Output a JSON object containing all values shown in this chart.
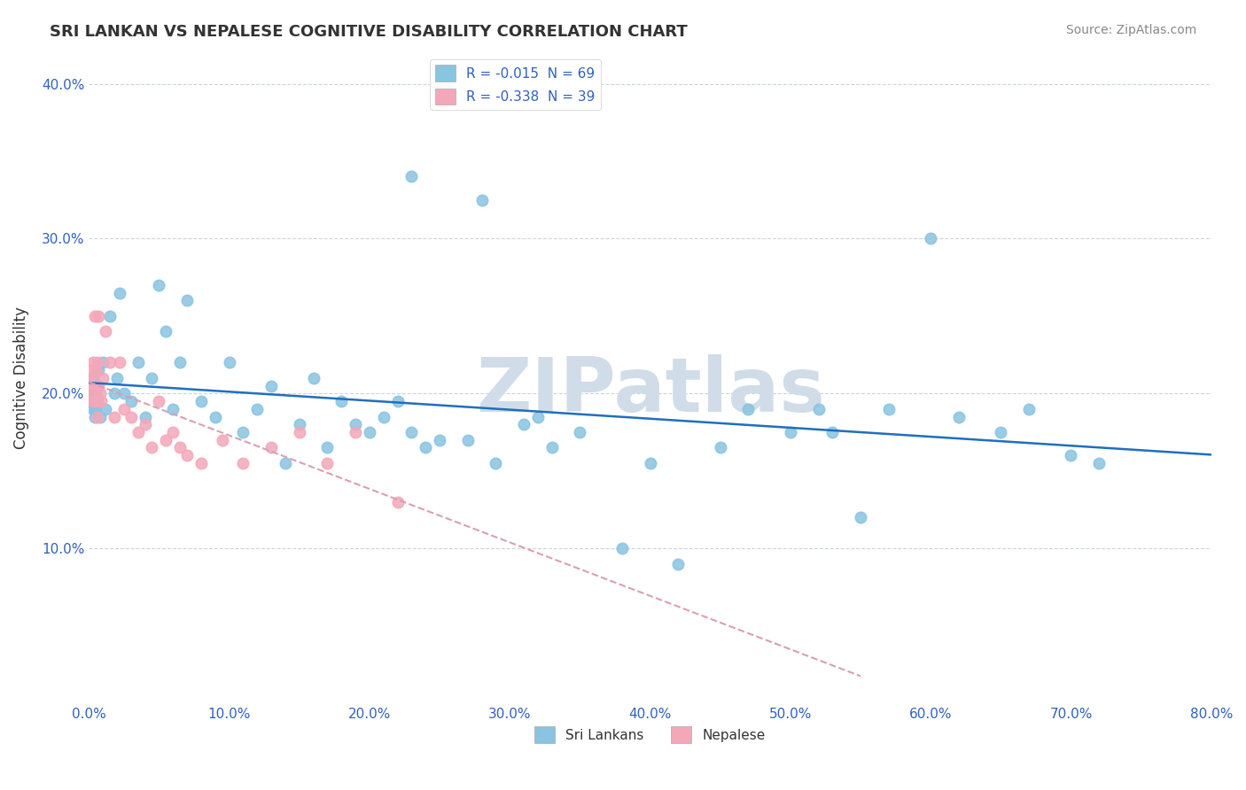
{
  "title": "SRI LANKAN VS NEPALESE COGNITIVE DISABILITY CORRELATION CHART",
  "source": "Source: ZipAtlas.com",
  "xlabel_ticks": [
    "0.0%",
    "10.0%",
    "20.0%",
    "30.0%",
    "40.0%",
    "50.0%",
    "60.0%",
    "70.0%",
    "80.0%"
  ],
  "ylabel_ticks": [
    "10.0%",
    "20.0%",
    "30.0%",
    "40.0%"
  ],
  "xlabel_vals": [
    0.0,
    0.1,
    0.2,
    0.3,
    0.4,
    0.5,
    0.6,
    0.7,
    0.8
  ],
  "ylabel_vals": [
    0.1,
    0.2,
    0.3,
    0.4
  ],
  "xlim": [
    0.0,
    0.8
  ],
  "ylim": [
    0.0,
    0.42
  ],
  "legend_r1": "R = -0.015  N = 69",
  "legend_r2": "R = -0.338  N = 39",
  "legend_label1": "Sri Lankans",
  "legend_label2": "Nepalese",
  "color_sri": "#89c4e1",
  "color_nep": "#f4a7b9",
  "trendline_sri_color": "#1f6fbf",
  "trendline_nep_color": "#d9a0b0",
  "watermark": "ZIPatlas",
  "watermark_color": "#d0dce8",
  "background_color": "#ffffff",
  "title_fontsize": 13,
  "sri_x": [
    0.001,
    0.002,
    0.003,
    0.003,
    0.004,
    0.004,
    0.005,
    0.005,
    0.006,
    0.007,
    0.008,
    0.01,
    0.012,
    0.015,
    0.018,
    0.02,
    0.022,
    0.025,
    0.03,
    0.035,
    0.04,
    0.045,
    0.05,
    0.055,
    0.06,
    0.065,
    0.07,
    0.08,
    0.09,
    0.1,
    0.11,
    0.12,
    0.13,
    0.14,
    0.15,
    0.16,
    0.17,
    0.18,
    0.19,
    0.2,
    0.21,
    0.22,
    0.23,
    0.24,
    0.25,
    0.27,
    0.29,
    0.31,
    0.33,
    0.35,
    0.38,
    0.4,
    0.42,
    0.45,
    0.47,
    0.5,
    0.53,
    0.55,
    0.57,
    0.6,
    0.62,
    0.65,
    0.67,
    0.7,
    0.72,
    0.23,
    0.28,
    0.32,
    0.52
  ],
  "sri_y": [
    0.195,
    0.2,
    0.19,
    0.21,
    0.205,
    0.185,
    0.19,
    0.2,
    0.195,
    0.215,
    0.185,
    0.22,
    0.19,
    0.25,
    0.2,
    0.21,
    0.265,
    0.2,
    0.195,
    0.22,
    0.185,
    0.21,
    0.27,
    0.24,
    0.19,
    0.22,
    0.26,
    0.195,
    0.185,
    0.22,
    0.175,
    0.19,
    0.205,
    0.155,
    0.18,
    0.21,
    0.165,
    0.195,
    0.18,
    0.175,
    0.185,
    0.195,
    0.175,
    0.165,
    0.17,
    0.17,
    0.155,
    0.18,
    0.165,
    0.175,
    0.1,
    0.155,
    0.09,
    0.165,
    0.19,
    0.175,
    0.175,
    0.12,
    0.19,
    0.3,
    0.185,
    0.175,
    0.19,
    0.16,
    0.155,
    0.34,
    0.325,
    0.185,
    0.19
  ],
  "nep_x": [
    0.001,
    0.001,
    0.002,
    0.002,
    0.003,
    0.003,
    0.004,
    0.004,
    0.005,
    0.005,
    0.006,
    0.006,
    0.007,
    0.007,
    0.008,
    0.009,
    0.01,
    0.012,
    0.015,
    0.018,
    0.022,
    0.025,
    0.03,
    0.035,
    0.04,
    0.045,
    0.05,
    0.055,
    0.06,
    0.065,
    0.07,
    0.08,
    0.095,
    0.11,
    0.13,
    0.15,
    0.17,
    0.19,
    0.22
  ],
  "nep_y": [
    0.205,
    0.21,
    0.215,
    0.2,
    0.22,
    0.195,
    0.25,
    0.205,
    0.195,
    0.215,
    0.22,
    0.185,
    0.25,
    0.205,
    0.2,
    0.195,
    0.21,
    0.24,
    0.22,
    0.185,
    0.22,
    0.19,
    0.185,
    0.175,
    0.18,
    0.165,
    0.195,
    0.17,
    0.175,
    0.165,
    0.16,
    0.155,
    0.17,
    0.155,
    0.165,
    0.175,
    0.155,
    0.175,
    0.13
  ]
}
